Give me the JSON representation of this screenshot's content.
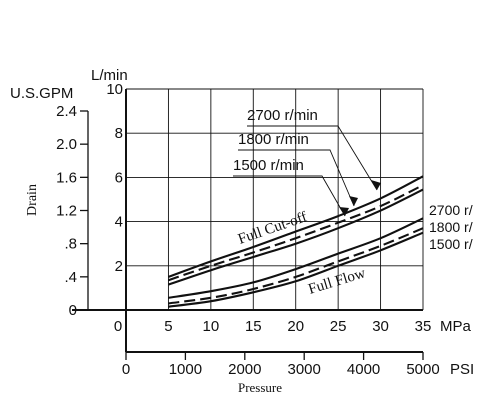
{
  "chart_data": {
    "type": "line",
    "x_mpa_label": "MPa",
    "x_mpa_ticks": [
      "0",
      "5",
      "10",
      "15",
      "20",
      "25",
      "30",
      "35"
    ],
    "x_psi_label": "PSI",
    "x_psi_ticks": [
      "0",
      "1000",
      "2000",
      "3000",
      "4000",
      "5000"
    ],
    "xlabel": "Pressure",
    "y_lmin_label": "L/min",
    "y_lmin_ticks": [
      "2",
      "4",
      "6",
      "8",
      "10"
    ],
    "y_gpm_label": "U.S.GPM",
    "y_gpm_ticks": [
      "0",
      ".4",
      ".8",
      "1.2",
      "1.6",
      "2.0",
      "2.4"
    ],
    "ylabel": "Drain",
    "xlim_mpa": [
      0,
      35
    ],
    "ylim_lmin": [
      0,
      10
    ],
    "grid": true,
    "curve_labels": [
      "Full Cut-off",
      "Full Flow"
    ],
    "annotations": [
      "2700 r/min",
      "1800 r/min",
      "1500 r/min"
    ],
    "right_labels": [
      "2700 r/",
      "1800 r/",
      "1500 r/"
    ],
    "series": [
      {
        "name": "2700 r/min",
        "group": "Full Cut-off",
        "style": "solid",
        "x": [
          5,
          10,
          15,
          20,
          25,
          30,
          35
        ],
        "y": [
          1.5,
          2.2,
          2.85,
          3.55,
          4.25,
          5.05,
          6.05
        ]
      },
      {
        "name": "1800 r/min",
        "group": "Full Cut-off",
        "style": "dashed",
        "x": [
          5,
          10,
          15,
          20,
          25,
          30,
          35
        ],
        "y": [
          1.35,
          2.0,
          2.6,
          3.25,
          3.95,
          4.7,
          5.65
        ]
      },
      {
        "name": "1500 r/min",
        "group": "Full Cut-off",
        "style": "solid",
        "x": [
          5,
          10,
          15,
          20,
          25,
          30,
          35
        ],
        "y": [
          1.15,
          1.8,
          2.4,
          3.0,
          3.7,
          4.5,
          5.45
        ]
      },
      {
        "name": "2700 r/min",
        "group": "Full Flow",
        "style": "solid",
        "x": [
          5,
          10,
          15,
          20,
          25,
          30,
          35
        ],
        "y": [
          0.55,
          0.85,
          1.25,
          1.85,
          2.55,
          3.25,
          4.15
        ]
      },
      {
        "name": "1800 r/min",
        "group": "Full Flow",
        "style": "dashed",
        "x": [
          5,
          10,
          15,
          20,
          25,
          30,
          35
        ],
        "y": [
          0.3,
          0.55,
          0.95,
          1.5,
          2.2,
          2.9,
          3.7
        ]
      },
      {
        "name": "1500 r/min",
        "group": "Full Flow",
        "style": "solid",
        "x": [
          5,
          10,
          15,
          20,
          25,
          30,
          35
        ],
        "y": [
          0.15,
          0.4,
          0.8,
          1.3,
          2.0,
          2.7,
          3.5
        ]
      }
    ]
  }
}
